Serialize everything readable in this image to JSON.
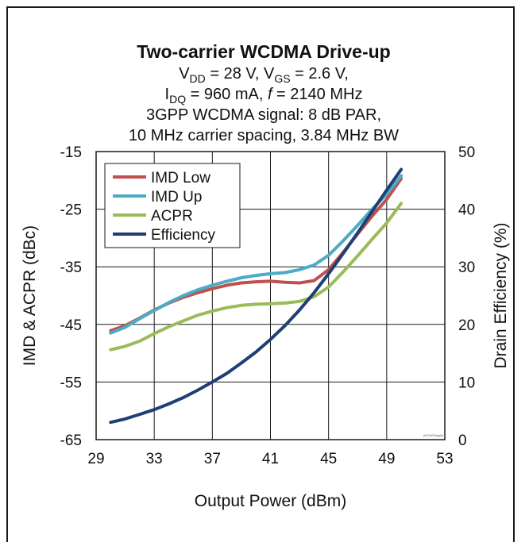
{
  "chart_data": {
    "type": "line",
    "title": "Two-carrier WCDMA Drive-up",
    "subtitle_lines": [
      {
        "parts": [
          [
            "V"
          ],
          [
            "DD",
            "sub"
          ],
          [
            " = 28 V, V"
          ],
          [
            "GS",
            "sub"
          ],
          [
            " = 2.6 V,"
          ]
        ]
      },
      {
        "parts": [
          [
            "I"
          ],
          [
            "DQ",
            "sub"
          ],
          [
            " = 960 mA, "
          ],
          [
            "f",
            "italic"
          ],
          [
            " = 2140 MHz"
          ]
        ]
      },
      {
        "parts": [
          [
            "3GPP WCDMA signal: 8 dB PAR,"
          ]
        ]
      },
      {
        "parts": [
          [
            "10 MHz carrier spacing, 3.84 MHz BW"
          ]
        ]
      }
    ],
    "xlabel": "Output Power (dBm)",
    "ylabel": "IMD & ACPR (dBc)",
    "y2label": "Drain Efficiency (%)",
    "xlim": [
      29,
      53
    ],
    "ylim": [
      -65,
      -15
    ],
    "y2lim": [
      0,
      50
    ],
    "xticks": [
      29,
      33,
      37,
      41,
      45,
      49,
      53
    ],
    "yticks": [
      -15,
      -25,
      -35,
      -45,
      -55,
      -65
    ],
    "y2ticks": [
      50,
      40,
      30,
      20,
      10,
      0
    ],
    "grid": true,
    "legend_position": "top-left",
    "watermark": "a211902a/g4b",
    "series": [
      {
        "name": "IMD Low",
        "axis": "left",
        "color": "#c0504d",
        "x": [
          30,
          31,
          32,
          33,
          34,
          35,
          36,
          37,
          38,
          39,
          40,
          41,
          42,
          43,
          44,
          45,
          46,
          47,
          48,
          49,
          50
        ],
        "y": [
          -46.1,
          -45.2,
          -43.9,
          -42.5,
          -41.3,
          -40.3,
          -39.5,
          -38.8,
          -38.2,
          -37.8,
          -37.6,
          -37.5,
          -37.7,
          -37.8,
          -37.4,
          -35.5,
          -32.5,
          -29.3,
          -26.2,
          -23.3,
          -19.7
        ]
      },
      {
        "name": "IMD Up",
        "axis": "left",
        "color": "#4bacc6",
        "x": [
          30,
          31,
          32,
          33,
          34,
          35,
          36,
          37,
          38,
          39,
          40,
          41,
          42,
          43,
          44,
          45,
          46,
          47,
          48,
          49,
          50
        ],
        "y": [
          -46.5,
          -45.5,
          -44.0,
          -42.6,
          -41.2,
          -40.0,
          -39.0,
          -38.2,
          -37.5,
          -36.9,
          -36.5,
          -36.2,
          -36.0,
          -35.5,
          -34.7,
          -33.0,
          -30.5,
          -27.8,
          -25.0,
          -22.4,
          -19.2
        ]
      },
      {
        "name": "ACPR",
        "axis": "left",
        "color": "#9bbb59",
        "x": [
          30,
          31,
          32,
          33,
          34,
          35,
          36,
          37,
          38,
          39,
          40,
          41,
          42,
          43,
          44,
          45,
          46,
          47,
          48,
          49,
          50
        ],
        "y": [
          -49.4,
          -48.8,
          -47.9,
          -46.6,
          -45.4,
          -44.4,
          -43.4,
          -42.7,
          -42.1,
          -41.7,
          -41.5,
          -41.4,
          -41.3,
          -41.0,
          -40.2,
          -38.5,
          -35.9,
          -33.1,
          -30.2,
          -27.4,
          -24.0
        ]
      },
      {
        "name": "Efficiency",
        "axis": "right",
        "color": "#1f3f74",
        "x": [
          30,
          31,
          32,
          33,
          34,
          35,
          36,
          37,
          38,
          39,
          40,
          41,
          42,
          43,
          44,
          45,
          46,
          47,
          48,
          49,
          50
        ],
        "y": [
          3.0,
          3.6,
          4.4,
          5.2,
          6.2,
          7.3,
          8.6,
          10.0,
          11.5,
          13.3,
          15.2,
          17.4,
          19.8,
          22.5,
          25.5,
          28.8,
          32.3,
          35.9,
          39.6,
          43.3,
          46.9
        ]
      }
    ]
  }
}
